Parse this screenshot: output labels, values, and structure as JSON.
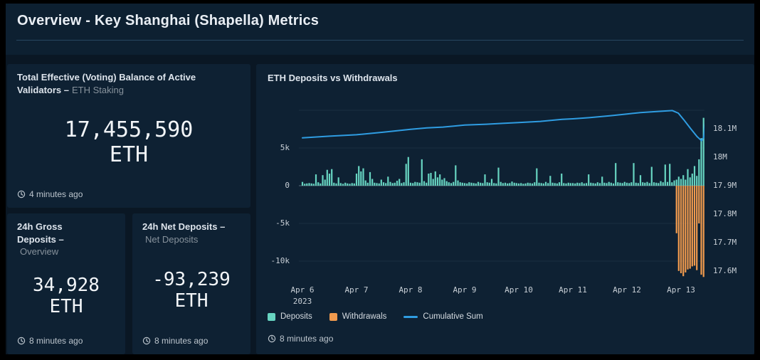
{
  "header": {
    "title": "Overview - Key Shanghai (Shapella) Metrics"
  },
  "panels": {
    "voting_balance": {
      "title_strong": "Total Effective (Voting) Balance of Active Validators –",
      "title_muted": "ETH Staking",
      "value": "17,455,590",
      "unit": "ETH",
      "updated": "4 minutes ago"
    },
    "gross_deposits": {
      "title_strong": "24h Gross Deposits –",
      "title_muted": "Overview",
      "value": "34,928",
      "unit": "ETH",
      "updated": "8 minutes ago"
    },
    "net_deposits": {
      "title_strong": "24h Net Deposits –",
      "title_muted": "Net Deposits",
      "value": "-93,239",
      "unit": "ETH",
      "updated": "8 minutes ago"
    },
    "chart": {
      "title": "ETH Deposits vs Withdrawals",
      "updated": "8 minutes ago",
      "legend": [
        {
          "key": "deposits",
          "label": "Deposits",
          "type": "bar"
        },
        {
          "key": "withdrawals",
          "label": "Withdrawals",
          "type": "bar"
        },
        {
          "key": "cumulative_sum",
          "label": "Cumulative Sum",
          "type": "line"
        }
      ]
    }
  },
  "chart_data": {
    "type": "bar",
    "title": "ETH Deposits vs Withdrawals",
    "start": "Apr 6, 2023 00:00",
    "interval_hours": 1,
    "grid": true,
    "legend_position": "bottom-left",
    "x_ticks": [
      {
        "label": "Apr 6",
        "sub": "2023",
        "day": 0
      },
      {
        "label": "Apr 7",
        "day": 1
      },
      {
        "label": "Apr 8",
        "day": 2
      },
      {
        "label": "Apr 9",
        "day": 3
      },
      {
        "label": "Apr 10",
        "day": 4
      },
      {
        "label": "Apr 11",
        "day": 5
      },
      {
        "label": "Apr 12",
        "day": 6
      },
      {
        "label": "Apr 13",
        "day": 7
      }
    ],
    "left_axis": {
      "unit": "ETH per hour",
      "ticks": [
        {
          "label": "5k",
          "value": 5000
        },
        {
          "label": "0",
          "value": 0
        },
        {
          "label": "-5k",
          "value": -5000
        },
        {
          "label": "-10k",
          "value": -10000
        }
      ],
      "grid_values": [
        10000,
        5000,
        0,
        -5000,
        -10000
      ],
      "range": [
        -12360,
        12830
      ]
    },
    "right_axis": {
      "unit": "M ETH",
      "ticks": [
        {
          "label": "18.1M",
          "value": 18.1
        },
        {
          "label": "18M",
          "value": 18.0
        },
        {
          "label": "17.9M",
          "value": 17.9
        },
        {
          "label": "17.8M",
          "value": 17.8
        },
        {
          "label": "17.7M",
          "value": 17.7
        },
        {
          "label": "17.6M",
          "value": 17.6
        }
      ],
      "range": [
        17.5725,
        18.24
      ]
    },
    "series_colors": {
      "deposits": "#67d4c1",
      "withdrawals": "#f09a4e",
      "cumulative_sum": "#2f9de2"
    },
    "deposits": [
      500,
      250,
      300,
      350,
      300,
      250,
      1500,
      450,
      300,
      1400,
      800,
      2100,
      1600,
      2200,
      400,
      300,
      1100,
      350,
      250,
      400,
      300,
      250,
      350,
      300,
      1600,
      2600,
      1900,
      2300,
      700,
      400,
      1800,
      900,
      400,
      350,
      300,
      800,
      450,
      350,
      1200,
      500,
      350,
      400,
      650,
      900,
      350,
      450,
      2900,
      3800,
      400,
      350,
      500,
      450,
      400,
      3500,
      600,
      400,
      1600,
      1700,
      900,
      1900,
      1100,
      1500,
      800,
      1000,
      600,
      450,
      350,
      500,
      2700,
      700,
      450,
      400,
      350,
      300,
      450,
      400,
      350,
      300,
      500,
      400,
      350,
      1500,
      450,
      400,
      900,
      350,
      300,
      2400,
      500,
      350,
      400,
      300,
      350,
      550,
      400,
      350,
      300,
      350,
      250,
      300,
      400,
      350,
      300,
      450,
      2300,
      400,
      350,
      300,
      500,
      350,
      1300,
      400,
      350,
      300,
      450,
      1600,
      350,
      300,
      400,
      350,
      350,
      300,
      400,
      350,
      450,
      300,
      350,
      1500,
      400,
      350,
      300,
      450,
      350,
      1200,
      400,
      350,
      500,
      400,
      300,
      3000,
      450,
      400,
      350,
      500,
      400,
      350,
      450,
      3000,
      400,
      350,
      1400,
      450,
      400,
      500,
      350,
      2500,
      450,
      400,
      350,
      600,
      450,
      2800,
      500,
      2900,
      450,
      700,
      800,
      1200,
      900,
      1400,
      800,
      2200,
      1100,
      1600,
      2600,
      1300,
      3500,
      6300,
      9000,
      0
    ],
    "withdrawals": {
      "note": "ETH per hour; zero before start_index (withdrawals began with Shapella, Apr 12 ~22:00 UTC)",
      "start_index": 166,
      "values": [
        -6300,
        -11300,
        -11600,
        -12000,
        -11500,
        -11100,
        -11000,
        -10700,
        -10600,
        -11200,
        -5000,
        -11800,
        -12100
      ]
    },
    "cumulative_sum": {
      "axis": "right",
      "unit": "M ETH",
      "points": [
        [
          0.0,
          18.068
        ],
        [
          0.5,
          18.074
        ],
        [
          1.0,
          18.079
        ],
        [
          1.5,
          18.088
        ],
        [
          2.0,
          18.098
        ],
        [
          2.3,
          18.103
        ],
        [
          2.6,
          18.106
        ],
        [
          3.0,
          18.113
        ],
        [
          3.4,
          18.116
        ],
        [
          3.7,
          18.119
        ],
        [
          4.0,
          18.122
        ],
        [
          4.4,
          18.126
        ],
        [
          4.8,
          18.133
        ],
        [
          5.0,
          18.135
        ],
        [
          5.3,
          18.139
        ],
        [
          5.7,
          18.146
        ],
        [
          6.0,
          18.152
        ],
        [
          6.25,
          18.157
        ],
        [
          6.5,
          18.16
        ],
        [
          6.84,
          18.164
        ],
        [
          6.95,
          18.155
        ],
        [
          7.05,
          18.132
        ],
        [
          7.18,
          18.1
        ],
        [
          7.3,
          18.072
        ],
        [
          7.38,
          18.058
        ],
        [
          7.42,
          18.07
        ],
        [
          7.45,
          18.128
        ]
      ]
    }
  }
}
